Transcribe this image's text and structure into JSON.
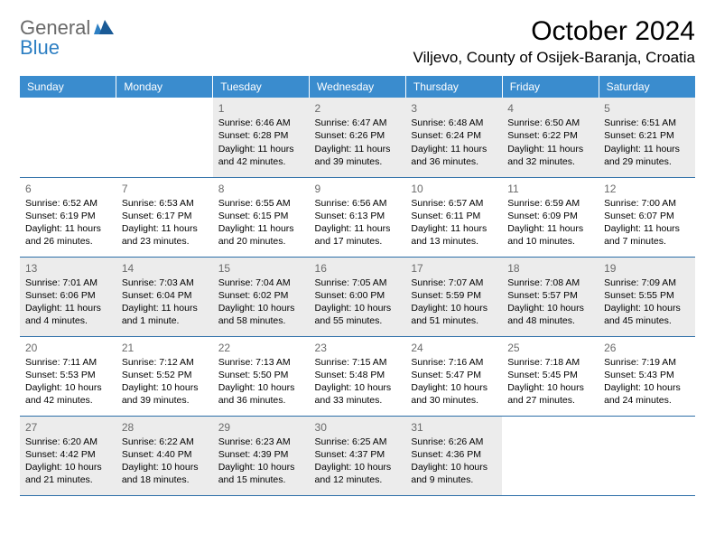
{
  "logo": {
    "general": "General",
    "blue": "Blue"
  },
  "header": {
    "title": "October 2024",
    "location": "Viljevo, County of Osijek-Baranja, Croatia"
  },
  "colors": {
    "header_bg": "#3a8cce",
    "header_text": "#ffffff",
    "border": "#2d6fa8",
    "daynum": "#6a6a6a",
    "shade": "#ececec",
    "background": "#ffffff",
    "text": "#000000"
  },
  "weekdays": [
    "Sunday",
    "Monday",
    "Tuesday",
    "Wednesday",
    "Thursday",
    "Friday",
    "Saturday"
  ],
  "weeks": [
    [
      {
        "empty": true
      },
      {
        "empty": true
      },
      {
        "day": "1",
        "shade": true,
        "sunrise": "Sunrise: 6:46 AM",
        "sunset": "Sunset: 6:28 PM",
        "daylight": "Daylight: 11 hours and 42 minutes."
      },
      {
        "day": "2",
        "shade": true,
        "sunrise": "Sunrise: 6:47 AM",
        "sunset": "Sunset: 6:26 PM",
        "daylight": "Daylight: 11 hours and 39 minutes."
      },
      {
        "day": "3",
        "shade": true,
        "sunrise": "Sunrise: 6:48 AM",
        "sunset": "Sunset: 6:24 PM",
        "daylight": "Daylight: 11 hours and 36 minutes."
      },
      {
        "day": "4",
        "shade": true,
        "sunrise": "Sunrise: 6:50 AM",
        "sunset": "Sunset: 6:22 PM",
        "daylight": "Daylight: 11 hours and 32 minutes."
      },
      {
        "day": "5",
        "shade": true,
        "sunrise": "Sunrise: 6:51 AM",
        "sunset": "Sunset: 6:21 PM",
        "daylight": "Daylight: 11 hours and 29 minutes."
      }
    ],
    [
      {
        "day": "6",
        "sunrise": "Sunrise: 6:52 AM",
        "sunset": "Sunset: 6:19 PM",
        "daylight": "Daylight: 11 hours and 26 minutes."
      },
      {
        "day": "7",
        "sunrise": "Sunrise: 6:53 AM",
        "sunset": "Sunset: 6:17 PM",
        "daylight": "Daylight: 11 hours and 23 minutes."
      },
      {
        "day": "8",
        "sunrise": "Sunrise: 6:55 AM",
        "sunset": "Sunset: 6:15 PM",
        "daylight": "Daylight: 11 hours and 20 minutes."
      },
      {
        "day": "9",
        "sunrise": "Sunrise: 6:56 AM",
        "sunset": "Sunset: 6:13 PM",
        "daylight": "Daylight: 11 hours and 17 minutes."
      },
      {
        "day": "10",
        "sunrise": "Sunrise: 6:57 AM",
        "sunset": "Sunset: 6:11 PM",
        "daylight": "Daylight: 11 hours and 13 minutes."
      },
      {
        "day": "11",
        "sunrise": "Sunrise: 6:59 AM",
        "sunset": "Sunset: 6:09 PM",
        "daylight": "Daylight: 11 hours and 10 minutes."
      },
      {
        "day": "12",
        "sunrise": "Sunrise: 7:00 AM",
        "sunset": "Sunset: 6:07 PM",
        "daylight": "Daylight: 11 hours and 7 minutes."
      }
    ],
    [
      {
        "day": "13",
        "shade": true,
        "sunrise": "Sunrise: 7:01 AM",
        "sunset": "Sunset: 6:06 PM",
        "daylight": "Daylight: 11 hours and 4 minutes."
      },
      {
        "day": "14",
        "shade": true,
        "sunrise": "Sunrise: 7:03 AM",
        "sunset": "Sunset: 6:04 PM",
        "daylight": "Daylight: 11 hours and 1 minute."
      },
      {
        "day": "15",
        "shade": true,
        "sunrise": "Sunrise: 7:04 AM",
        "sunset": "Sunset: 6:02 PM",
        "daylight": "Daylight: 10 hours and 58 minutes."
      },
      {
        "day": "16",
        "shade": true,
        "sunrise": "Sunrise: 7:05 AM",
        "sunset": "Sunset: 6:00 PM",
        "daylight": "Daylight: 10 hours and 55 minutes."
      },
      {
        "day": "17",
        "shade": true,
        "sunrise": "Sunrise: 7:07 AM",
        "sunset": "Sunset: 5:59 PM",
        "daylight": "Daylight: 10 hours and 51 minutes."
      },
      {
        "day": "18",
        "shade": true,
        "sunrise": "Sunrise: 7:08 AM",
        "sunset": "Sunset: 5:57 PM",
        "daylight": "Daylight: 10 hours and 48 minutes."
      },
      {
        "day": "19",
        "shade": true,
        "sunrise": "Sunrise: 7:09 AM",
        "sunset": "Sunset: 5:55 PM",
        "daylight": "Daylight: 10 hours and 45 minutes."
      }
    ],
    [
      {
        "day": "20",
        "sunrise": "Sunrise: 7:11 AM",
        "sunset": "Sunset: 5:53 PM",
        "daylight": "Daylight: 10 hours and 42 minutes."
      },
      {
        "day": "21",
        "sunrise": "Sunrise: 7:12 AM",
        "sunset": "Sunset: 5:52 PM",
        "daylight": "Daylight: 10 hours and 39 minutes."
      },
      {
        "day": "22",
        "sunrise": "Sunrise: 7:13 AM",
        "sunset": "Sunset: 5:50 PM",
        "daylight": "Daylight: 10 hours and 36 minutes."
      },
      {
        "day": "23",
        "sunrise": "Sunrise: 7:15 AM",
        "sunset": "Sunset: 5:48 PM",
        "daylight": "Daylight: 10 hours and 33 minutes."
      },
      {
        "day": "24",
        "sunrise": "Sunrise: 7:16 AM",
        "sunset": "Sunset: 5:47 PM",
        "daylight": "Daylight: 10 hours and 30 minutes."
      },
      {
        "day": "25",
        "sunrise": "Sunrise: 7:18 AM",
        "sunset": "Sunset: 5:45 PM",
        "daylight": "Daylight: 10 hours and 27 minutes."
      },
      {
        "day": "26",
        "sunrise": "Sunrise: 7:19 AM",
        "sunset": "Sunset: 5:43 PM",
        "daylight": "Daylight: 10 hours and 24 minutes."
      }
    ],
    [
      {
        "day": "27",
        "shade": true,
        "sunrise": "Sunrise: 6:20 AM",
        "sunset": "Sunset: 4:42 PM",
        "daylight": "Daylight: 10 hours and 21 minutes."
      },
      {
        "day": "28",
        "shade": true,
        "sunrise": "Sunrise: 6:22 AM",
        "sunset": "Sunset: 4:40 PM",
        "daylight": "Daylight: 10 hours and 18 minutes."
      },
      {
        "day": "29",
        "shade": true,
        "sunrise": "Sunrise: 6:23 AM",
        "sunset": "Sunset: 4:39 PM",
        "daylight": "Daylight: 10 hours and 15 minutes."
      },
      {
        "day": "30",
        "shade": true,
        "sunrise": "Sunrise: 6:25 AM",
        "sunset": "Sunset: 4:37 PM",
        "daylight": "Daylight: 10 hours and 12 minutes."
      },
      {
        "day": "31",
        "shade": true,
        "sunrise": "Sunrise: 6:26 AM",
        "sunset": "Sunset: 4:36 PM",
        "daylight": "Daylight: 10 hours and 9 minutes."
      },
      {
        "empty": true
      },
      {
        "empty": true
      }
    ]
  ]
}
